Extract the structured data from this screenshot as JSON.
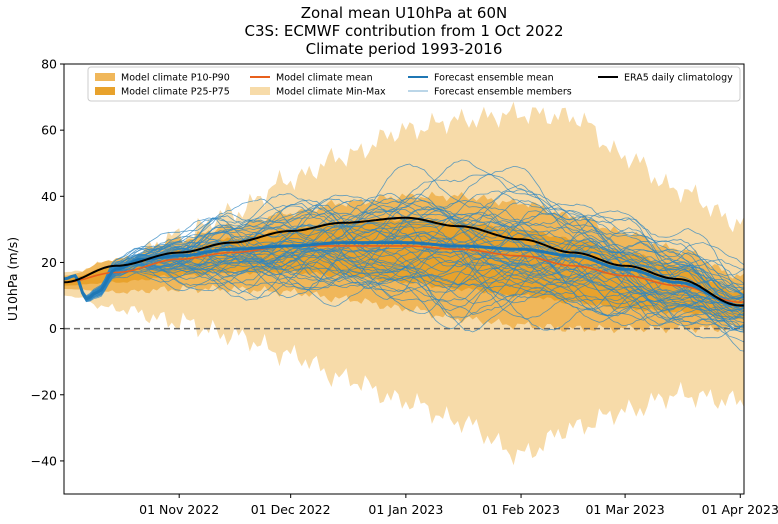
{
  "chart_data": {
    "type": "line",
    "title_lines": [
      "Zonal mean U10hPa at 60N",
      "C3S: ECMWF contribution from 1 Oct 2022",
      "Climate period 1993-2016"
    ],
    "ylabel": "U10hPa (m/s)",
    "xlabel": "",
    "xlim": [
      "2022-10-01",
      "2023-04-02"
    ],
    "ylim": [
      -50,
      80
    ],
    "yticks": [
      -40,
      -20,
      0,
      20,
      40,
      60,
      80
    ],
    "xticks": [
      {
        "date": "2022-11-01",
        "label": "01 Nov 2022"
      },
      {
        "date": "2022-12-01",
        "label": "01 Dec 2022"
      },
      {
        "date": "2023-01-01",
        "label": "01 Jan 2023"
      },
      {
        "date": "2023-02-01",
        "label": "01 Feb 2023"
      },
      {
        "date": "2023-03-01",
        "label": "01 Mar 2023"
      },
      {
        "date": "2023-04-01",
        "label": "01 Apr 2023"
      }
    ],
    "reference_line": {
      "y": 0,
      "style": "dashed",
      "color": "#666666"
    },
    "legend": {
      "placement": "top",
      "entries": [
        {
          "label": "Model climate P10-P90",
          "kind": "patch",
          "color": "#f0b75a"
        },
        {
          "label": "Model climate P25-P75",
          "kind": "patch",
          "color": "#e8a22c"
        },
        {
          "label": "Model climate mean",
          "kind": "line",
          "color": "#e8601c"
        },
        {
          "label": "Model climate Min-Max",
          "kind": "patch",
          "color": "#f7dba9"
        },
        {
          "label": "Forecast ensemble mean",
          "kind": "line",
          "color": "#1f77b4"
        },
        {
          "label": "Forecast ensemble members",
          "kind": "thinline",
          "color": "#4a90c2"
        },
        {
          "label": "ERA5 daily climatology",
          "kind": "line",
          "color": "#000000"
        }
      ]
    },
    "colors": {
      "minmax": "#f7dba9",
      "p10p90": "#f0b75a",
      "p25p75": "#e8a22c",
      "climate_mean": "#e8601c",
      "ensemble_mean": "#1f77b4",
      "ensemble_members": "#2e86c1",
      "era5": "#000000"
    },
    "series": {
      "minmax": {
        "x": [
          "2022-10-01",
          "2022-10-15",
          "2022-11-01",
          "2022-11-15",
          "2022-12-01",
          "2022-12-15",
          "2023-01-01",
          "2023-01-15",
          "2023-02-01",
          "2023-02-15",
          "2023-03-01",
          "2023-03-15",
          "2023-04-01"
        ],
        "upper": [
          17,
          20,
          28,
          35,
          45,
          52,
          60,
          63,
          65,
          64,
          52,
          42,
          32
        ],
        "lower": [
          10,
          6,
          2,
          -2,
          -8,
          -15,
          -22,
          -28,
          -38,
          -30,
          -25,
          -20,
          -22
        ]
      },
      "p10p90": {
        "x": [
          "2022-10-01",
          "2022-10-15",
          "2022-11-01",
          "2022-11-15",
          "2022-12-01",
          "2022-12-15",
          "2023-01-01",
          "2023-01-15",
          "2023-02-01",
          "2023-02-15",
          "2023-03-01",
          "2023-03-15",
          "2023-04-01"
        ],
        "upper": [
          16,
          21,
          27,
          31,
          35,
          38,
          40,
          40,
          38,
          34,
          29,
          24,
          16
        ],
        "lower": [
          12,
          11,
          12,
          12,
          11,
          9,
          6,
          3,
          1,
          0,
          0,
          0,
          0
        ]
      },
      "p25p75": {
        "x": [
          "2022-10-01",
          "2022-10-15",
          "2022-11-01",
          "2022-11-15",
          "2022-12-01",
          "2022-12-15",
          "2023-01-01",
          "2023-01-15",
          "2023-02-01",
          "2023-02-15",
          "2023-03-01",
          "2023-03-15",
          "2023-04-01"
        ],
        "upper": [
          15,
          19,
          24,
          27,
          30,
          32,
          33,
          32,
          30,
          27,
          23,
          19,
          11
        ],
        "lower": [
          13,
          14,
          16,
          17,
          17,
          16,
          14,
          12,
          10,
          8,
          6,
          5,
          3
        ]
      },
      "climate_mean": {
        "x": [
          "2022-10-01",
          "2022-10-15",
          "2022-11-01",
          "2022-11-15",
          "2022-12-01",
          "2022-12-15",
          "2023-01-01",
          "2023-01-15",
          "2023-02-01",
          "2023-02-15",
          "2023-03-01",
          "2023-03-15",
          "2023-04-01"
        ],
        "y": [
          14,
          17,
          21,
          23,
          25,
          25,
          25,
          24,
          22,
          19,
          16,
          13,
          8
        ]
      },
      "era5": {
        "x": [
          "2022-10-01",
          "2022-10-15",
          "2022-11-01",
          "2022-11-15",
          "2022-12-01",
          "2022-12-15",
          "2023-01-01",
          "2023-01-15",
          "2023-02-01",
          "2023-02-15",
          "2023-03-01",
          "2023-03-15",
          "2023-04-01"
        ],
        "y": [
          14,
          19,
          23,
          26,
          29.5,
          32,
          33.5,
          31,
          27,
          23,
          19,
          15,
          7
        ]
      },
      "ensemble_mean": {
        "x": [
          "2022-10-01",
          "2022-10-04",
          "2022-10-07",
          "2022-10-10",
          "2022-10-15",
          "2022-10-22",
          "2022-11-01",
          "2022-11-15",
          "2022-12-01",
          "2022-12-15",
          "2023-01-01",
          "2023-01-15",
          "2023-02-01",
          "2023-02-15",
          "2023-03-01",
          "2023-03-15",
          "2023-04-01"
        ],
        "y": [
          15,
          16,
          9,
          11,
          18,
          21,
          22,
          24,
          25,
          26,
          26,
          25,
          24,
          22,
          18,
          14,
          7
        ]
      }
    }
  }
}
